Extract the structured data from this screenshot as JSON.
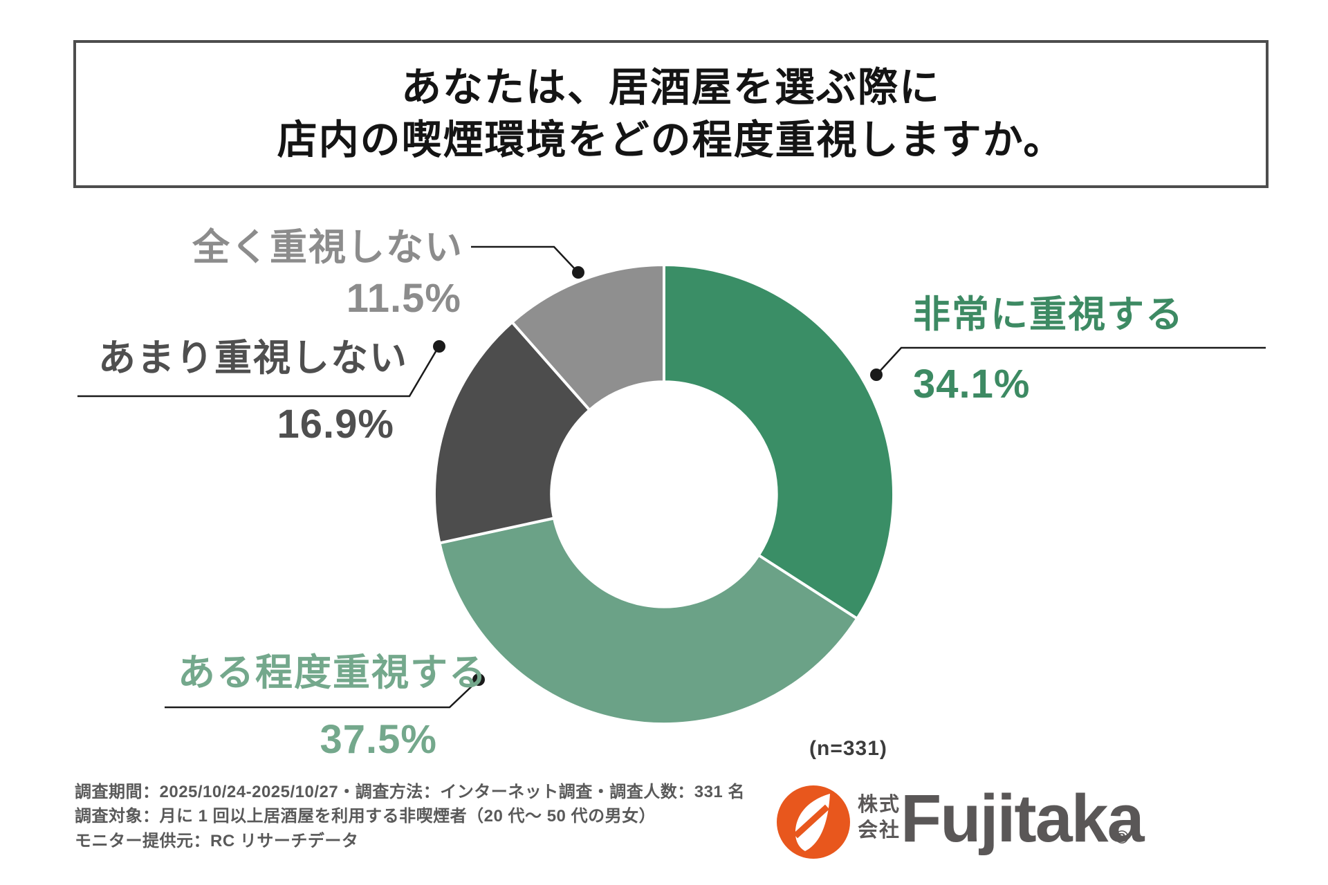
{
  "title": {
    "line1": "あなたは、居酒屋を選ぶ際に",
    "line2": "店内の喫煙環境をどの程度重視しますか。"
  },
  "chart_data": {
    "type": "pie",
    "subtype": "donut",
    "title": "あなたは、居酒屋を選ぶ際に 店内の喫煙環境をどの程度重視しますか。",
    "sample_size_label": "(n=331)",
    "start_angle_deg": 0,
    "direction": "clockwise",
    "inner_radius_ratio": 0.49,
    "segments": [
      {
        "label": "非常に重視する",
        "value_pct": 34.1,
        "pct_label": "34.1%",
        "color": "#3a8e66",
        "label_color": "#3d8a63"
      },
      {
        "label": "ある程度重視する",
        "value_pct": 37.5,
        "pct_label": "37.5%",
        "color": "#6ba287",
        "label_color": "#74a88c"
      },
      {
        "label": "あまり重視しない",
        "value_pct": 16.9,
        "pct_label": "16.9%",
        "color": "#4d4d4d",
        "label_color": "#4f4f4f"
      },
      {
        "label": "全く重視しない",
        "value_pct": 11.5,
        "pct_label": "11.5%",
        "color": "#8f8f8f",
        "label_color": "#8c8c8c"
      }
    ]
  },
  "footnote": {
    "line1": "調査期間：2025/10/24-2025/10/27・調査方法：インターネット調査・調査人数：331 名",
    "line2": "調査対象：月に 1 回以上居酒屋を利用する非喫煙者（20 代～ 50 代の男女）",
    "line3": "モニター提供元：RC リサーチデータ"
  },
  "logo": {
    "company_prefix_line1": "株式",
    "company_prefix_line2": "会社",
    "brand": "Fujitaka",
    "registered_mark": "®",
    "orange": "#e8571d",
    "gray": "#5a5757"
  }
}
